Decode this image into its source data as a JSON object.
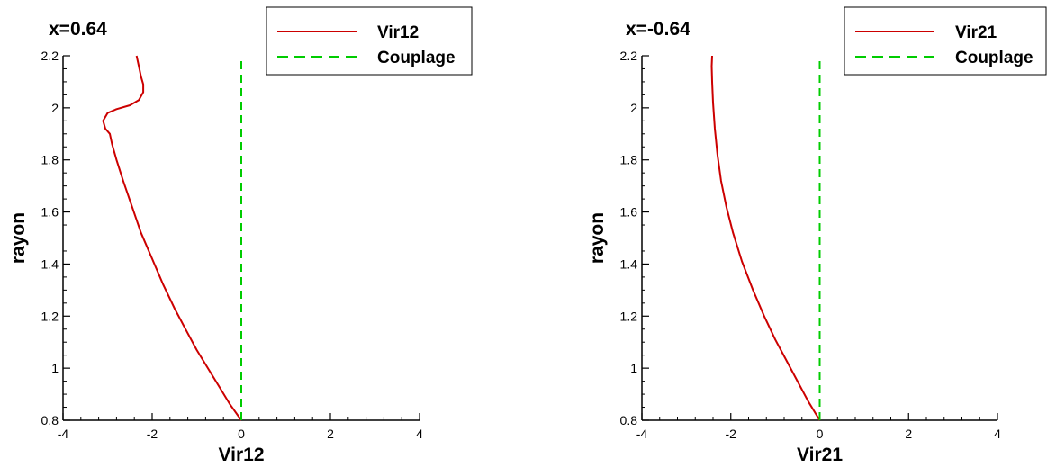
{
  "chart_data": [
    {
      "type": "line",
      "title": "x=0.64",
      "xlabel": "Vir12",
      "ylabel": "rayon",
      "xlim": [
        -4,
        4
      ],
      "ylim": [
        0.8,
        2.2
      ],
      "x_ticks": [
        -4,
        -2,
        0,
        2,
        4
      ],
      "y_ticks": [
        0.8,
        1,
        1.2,
        1.4,
        1.6,
        1.8,
        2,
        2.2
      ],
      "x_tick_labels": [
        "-4",
        "-2",
        "0",
        "2",
        "4"
      ],
      "y_tick_labels": [
        "0.8",
        "1",
        "1.2",
        "1.4",
        "1.6",
        "1.8",
        "2",
        "2.2"
      ],
      "grid": false,
      "legend_position": "top-right",
      "series": [
        {
          "name": "Vir12",
          "color": "#cc0000",
          "style": "solid",
          "points": [
            [
              0.0,
              0.8
            ],
            [
              -0.25,
              0.86
            ],
            [
              -0.5,
              0.93
            ],
            [
              -0.75,
              1.0
            ],
            [
              -1.0,
              1.07
            ],
            [
              -1.25,
              1.15
            ],
            [
              -1.5,
              1.23
            ],
            [
              -1.75,
              1.32
            ],
            [
              -2.0,
              1.42
            ],
            [
              -2.25,
              1.52
            ],
            [
              -2.45,
              1.62
            ],
            [
              -2.65,
              1.72
            ],
            [
              -2.8,
              1.8
            ],
            [
              -2.9,
              1.86
            ],
            [
              -2.95,
              1.9
            ],
            [
              -3.05,
              1.92
            ],
            [
              -3.1,
              1.95
            ],
            [
              -3.0,
              1.98
            ],
            [
              -2.8,
              1.995
            ],
            [
              -2.5,
              2.01
            ],
            [
              -2.3,
              2.03
            ],
            [
              -2.2,
              2.06
            ],
            [
              -2.2,
              2.09
            ],
            [
              -2.25,
              2.12
            ],
            [
              -2.3,
              2.16
            ],
            [
              -2.35,
              2.2
            ]
          ]
        },
        {
          "name": "Couplage",
          "color": "#00cc00",
          "style": "dashed",
          "points": [
            [
              0,
              0.8
            ],
            [
              0,
              2.2
            ]
          ]
        }
      ]
    },
    {
      "type": "line",
      "title": "x=-0.64",
      "xlabel": "Vir21",
      "ylabel": "rayon",
      "xlim": [
        -4,
        4
      ],
      "ylim": [
        0.8,
        2.2
      ],
      "x_ticks": [
        -4,
        -2,
        0,
        2,
        4
      ],
      "y_ticks": [
        0.8,
        1,
        1.2,
        1.4,
        1.6,
        1.8,
        2,
        2.2
      ],
      "x_tick_labels": [
        "-4",
        "-2",
        "0",
        "2",
        "4"
      ],
      "y_tick_labels": [
        "0.8",
        "1",
        "1.2",
        "1.4",
        "1.6",
        "1.8",
        "2",
        "2.2"
      ],
      "grid": false,
      "legend_position": "top-right",
      "series": [
        {
          "name": "Vir21",
          "color": "#cc0000",
          "style": "solid",
          "points": [
            [
              0.0,
              0.8
            ],
            [
              -0.25,
              0.87
            ],
            [
              -0.5,
              0.95
            ],
            [
              -0.75,
              1.03
            ],
            [
              -1.0,
              1.11
            ],
            [
              -1.25,
              1.2
            ],
            [
              -1.5,
              1.3
            ],
            [
              -1.75,
              1.41
            ],
            [
              -1.95,
              1.52
            ],
            [
              -2.1,
              1.62
            ],
            [
              -2.22,
              1.72
            ],
            [
              -2.3,
              1.82
            ],
            [
              -2.36,
              1.92
            ],
            [
              -2.4,
              2.02
            ],
            [
              -2.42,
              2.1
            ],
            [
              -2.43,
              2.16
            ],
            [
              -2.42,
              2.2
            ]
          ]
        },
        {
          "name": "Couplage",
          "color": "#00cc00",
          "style": "dashed",
          "points": [
            [
              0,
              0.8
            ],
            [
              0,
              2.2
            ]
          ]
        }
      ]
    }
  ]
}
